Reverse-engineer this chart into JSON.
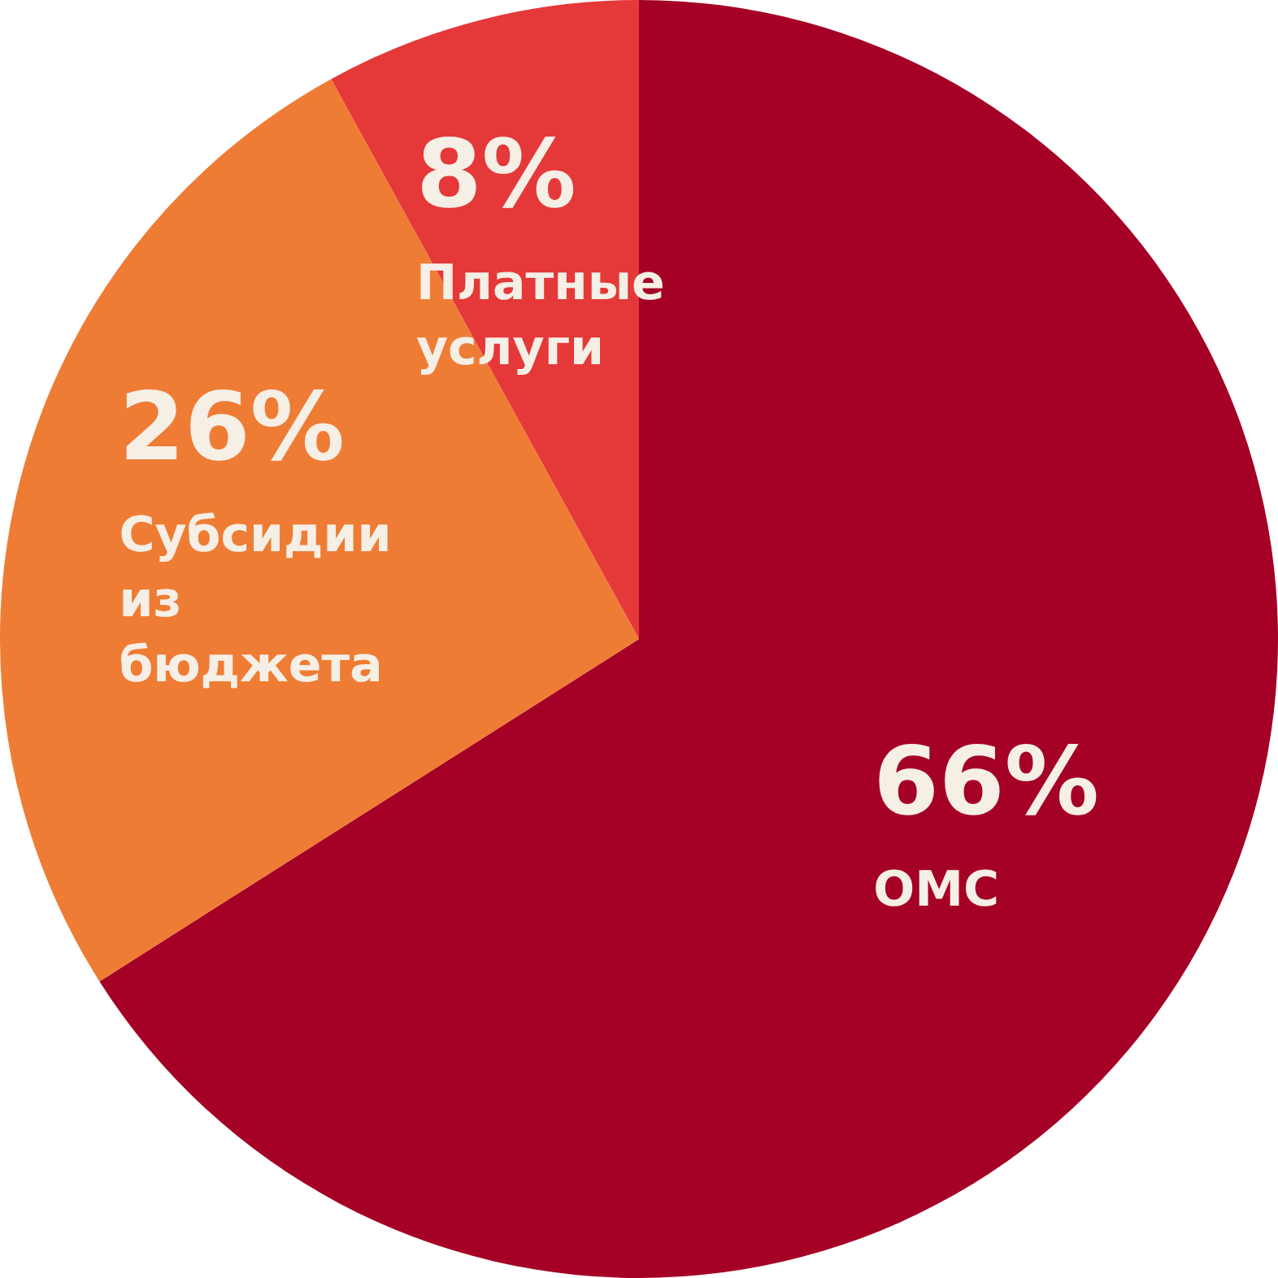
{
  "chart_data": {
    "type": "pie",
    "categories": [
      "ОМС",
      "Субсидии из бюджета",
      "Платные услуги"
    ],
    "values": [
      66,
      26,
      8
    ],
    "colors": [
      "#a50026",
      "#ef7c34",
      "#e53838"
    ],
    "value_labels": [
      "66%",
      "26%",
      "8%"
    ],
    "legend": false
  }
}
